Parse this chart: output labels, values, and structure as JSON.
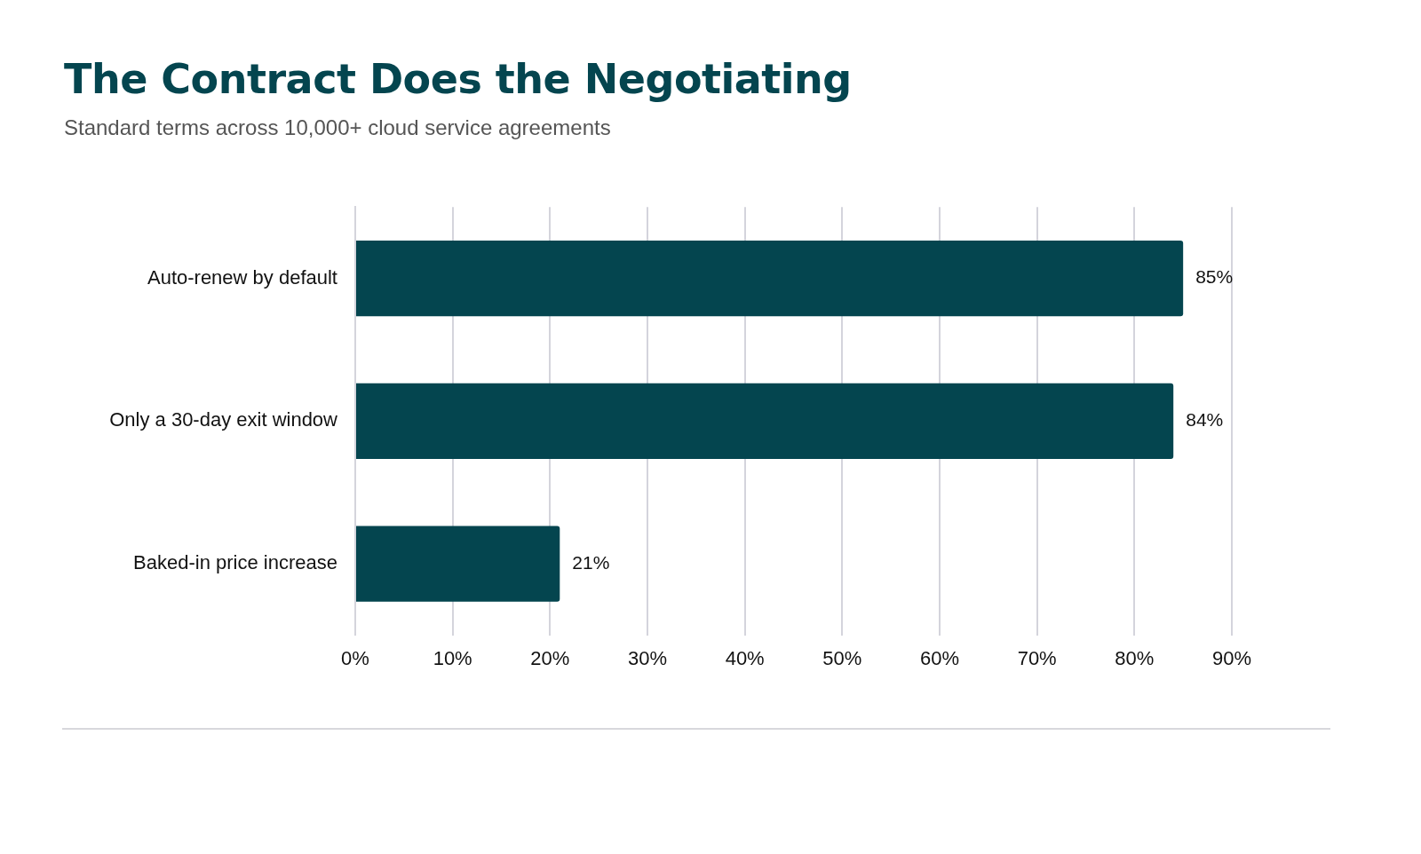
{
  "chart_data": {
    "type": "bar",
    "orientation": "horizontal",
    "title": "The Contract Does the Negotiating",
    "subtitle": "Standard terms across 10,000+ cloud service agreements",
    "categories": [
      "Auto-renew by default",
      "Only a 30-day exit window",
      "Baked-in price increase"
    ],
    "values": [
      85,
      84,
      21
    ],
    "color": "#04454f",
    "value_labels": [
      "85%",
      "84%",
      "21%"
    ],
    "xlim": [
      0,
      90
    ],
    "xticks": [
      {
        "value": 0,
        "label": "0%"
      },
      {
        "value": 10,
        "label": "10%"
      },
      {
        "value": 20,
        "label": "20%"
      },
      {
        "value": 30,
        "label": "30%"
      },
      {
        "value": 40,
        "label": "40%"
      },
      {
        "value": 50,
        "label": "50%"
      },
      {
        "value": 60,
        "label": "60%"
      },
      {
        "value": 70,
        "label": "70%"
      },
      {
        "value": 80,
        "label": "80%"
      },
      {
        "value": 90,
        "label": "90%"
      }
    ],
    "grid": "x"
  }
}
